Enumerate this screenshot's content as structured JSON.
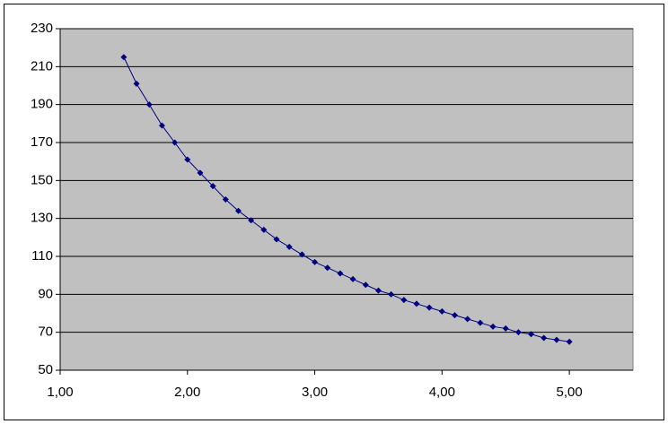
{
  "chart_data": {
    "type": "scatter",
    "x": [
      1.5,
      1.6,
      1.7,
      1.8,
      1.9,
      2.0,
      2.1,
      2.2,
      2.3,
      2.4,
      2.5,
      2.6,
      2.7,
      2.8,
      2.9,
      3.0,
      3.1,
      3.2,
      3.3,
      3.4,
      3.5,
      3.6,
      3.7,
      3.8,
      3.9,
      4.0,
      4.1,
      4.2,
      4.3,
      4.4,
      4.5,
      4.6,
      4.7,
      4.8,
      4.9,
      5.0
    ],
    "values": [
      215,
      201,
      190,
      179,
      170,
      161,
      154,
      147,
      140,
      134,
      129,
      124,
      119,
      115,
      111,
      107,
      104,
      101,
      98,
      95,
      92,
      90,
      87,
      85,
      83,
      81,
      79,
      77,
      75,
      73,
      72,
      70,
      69,
      67,
      66,
      65
    ],
    "color": "#000080",
    "xlim": [
      1,
      5.5
    ],
    "xticks": [
      {
        "value": 1,
        "label": "1,00"
      },
      {
        "value": 2,
        "label": "2,00"
      },
      {
        "value": 3,
        "label": "3,00"
      },
      {
        "value": 4,
        "label": "4,00"
      },
      {
        "value": 5,
        "label": "5,00"
      }
    ],
    "ylim": [
      50,
      230
    ],
    "yticks": [
      50,
      70,
      90,
      110,
      130,
      150,
      170,
      190,
      210,
      230
    ],
    "grid": true
  }
}
